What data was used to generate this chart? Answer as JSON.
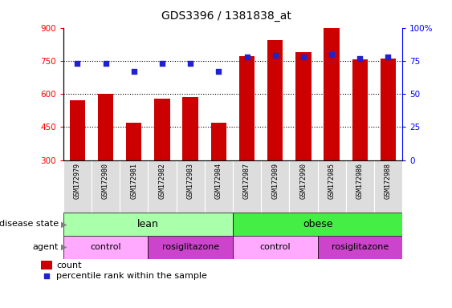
{
  "title": "GDS3396 / 1381838_at",
  "samples": [
    "GSM172979",
    "GSM172980",
    "GSM172981",
    "GSM172982",
    "GSM172983",
    "GSM172984",
    "GSM172987",
    "GSM172989",
    "GSM172990",
    "GSM172985",
    "GSM172986",
    "GSM172988"
  ],
  "bar_values": [
    570,
    600,
    470,
    580,
    585,
    470,
    770,
    845,
    790,
    905,
    755,
    760
  ],
  "dot_values": [
    73,
    73,
    67,
    73,
    73,
    67,
    78,
    79,
    78,
    80,
    77,
    78
  ],
  "ylim_left": [
    300,
    900
  ],
  "ylim_right": [
    0,
    100
  ],
  "yticks_left": [
    300,
    450,
    600,
    750,
    900
  ],
  "yticks_right": [
    0,
    25,
    50,
    75,
    100
  ],
  "bar_color": "#cc0000",
  "dot_color": "#2222cc",
  "disease_lean_color": "#aaffaa",
  "disease_obese_color": "#44ee44",
  "agent_control_color": "#ffaaff",
  "agent_rosig_color": "#cc44cc",
  "label_box_color": "#dddddd",
  "disease_label": "disease state",
  "agent_label": "agent",
  "legend_count": "count",
  "legend_pct": "percentile rank within the sample",
  "bg_color": "#ffffff"
}
